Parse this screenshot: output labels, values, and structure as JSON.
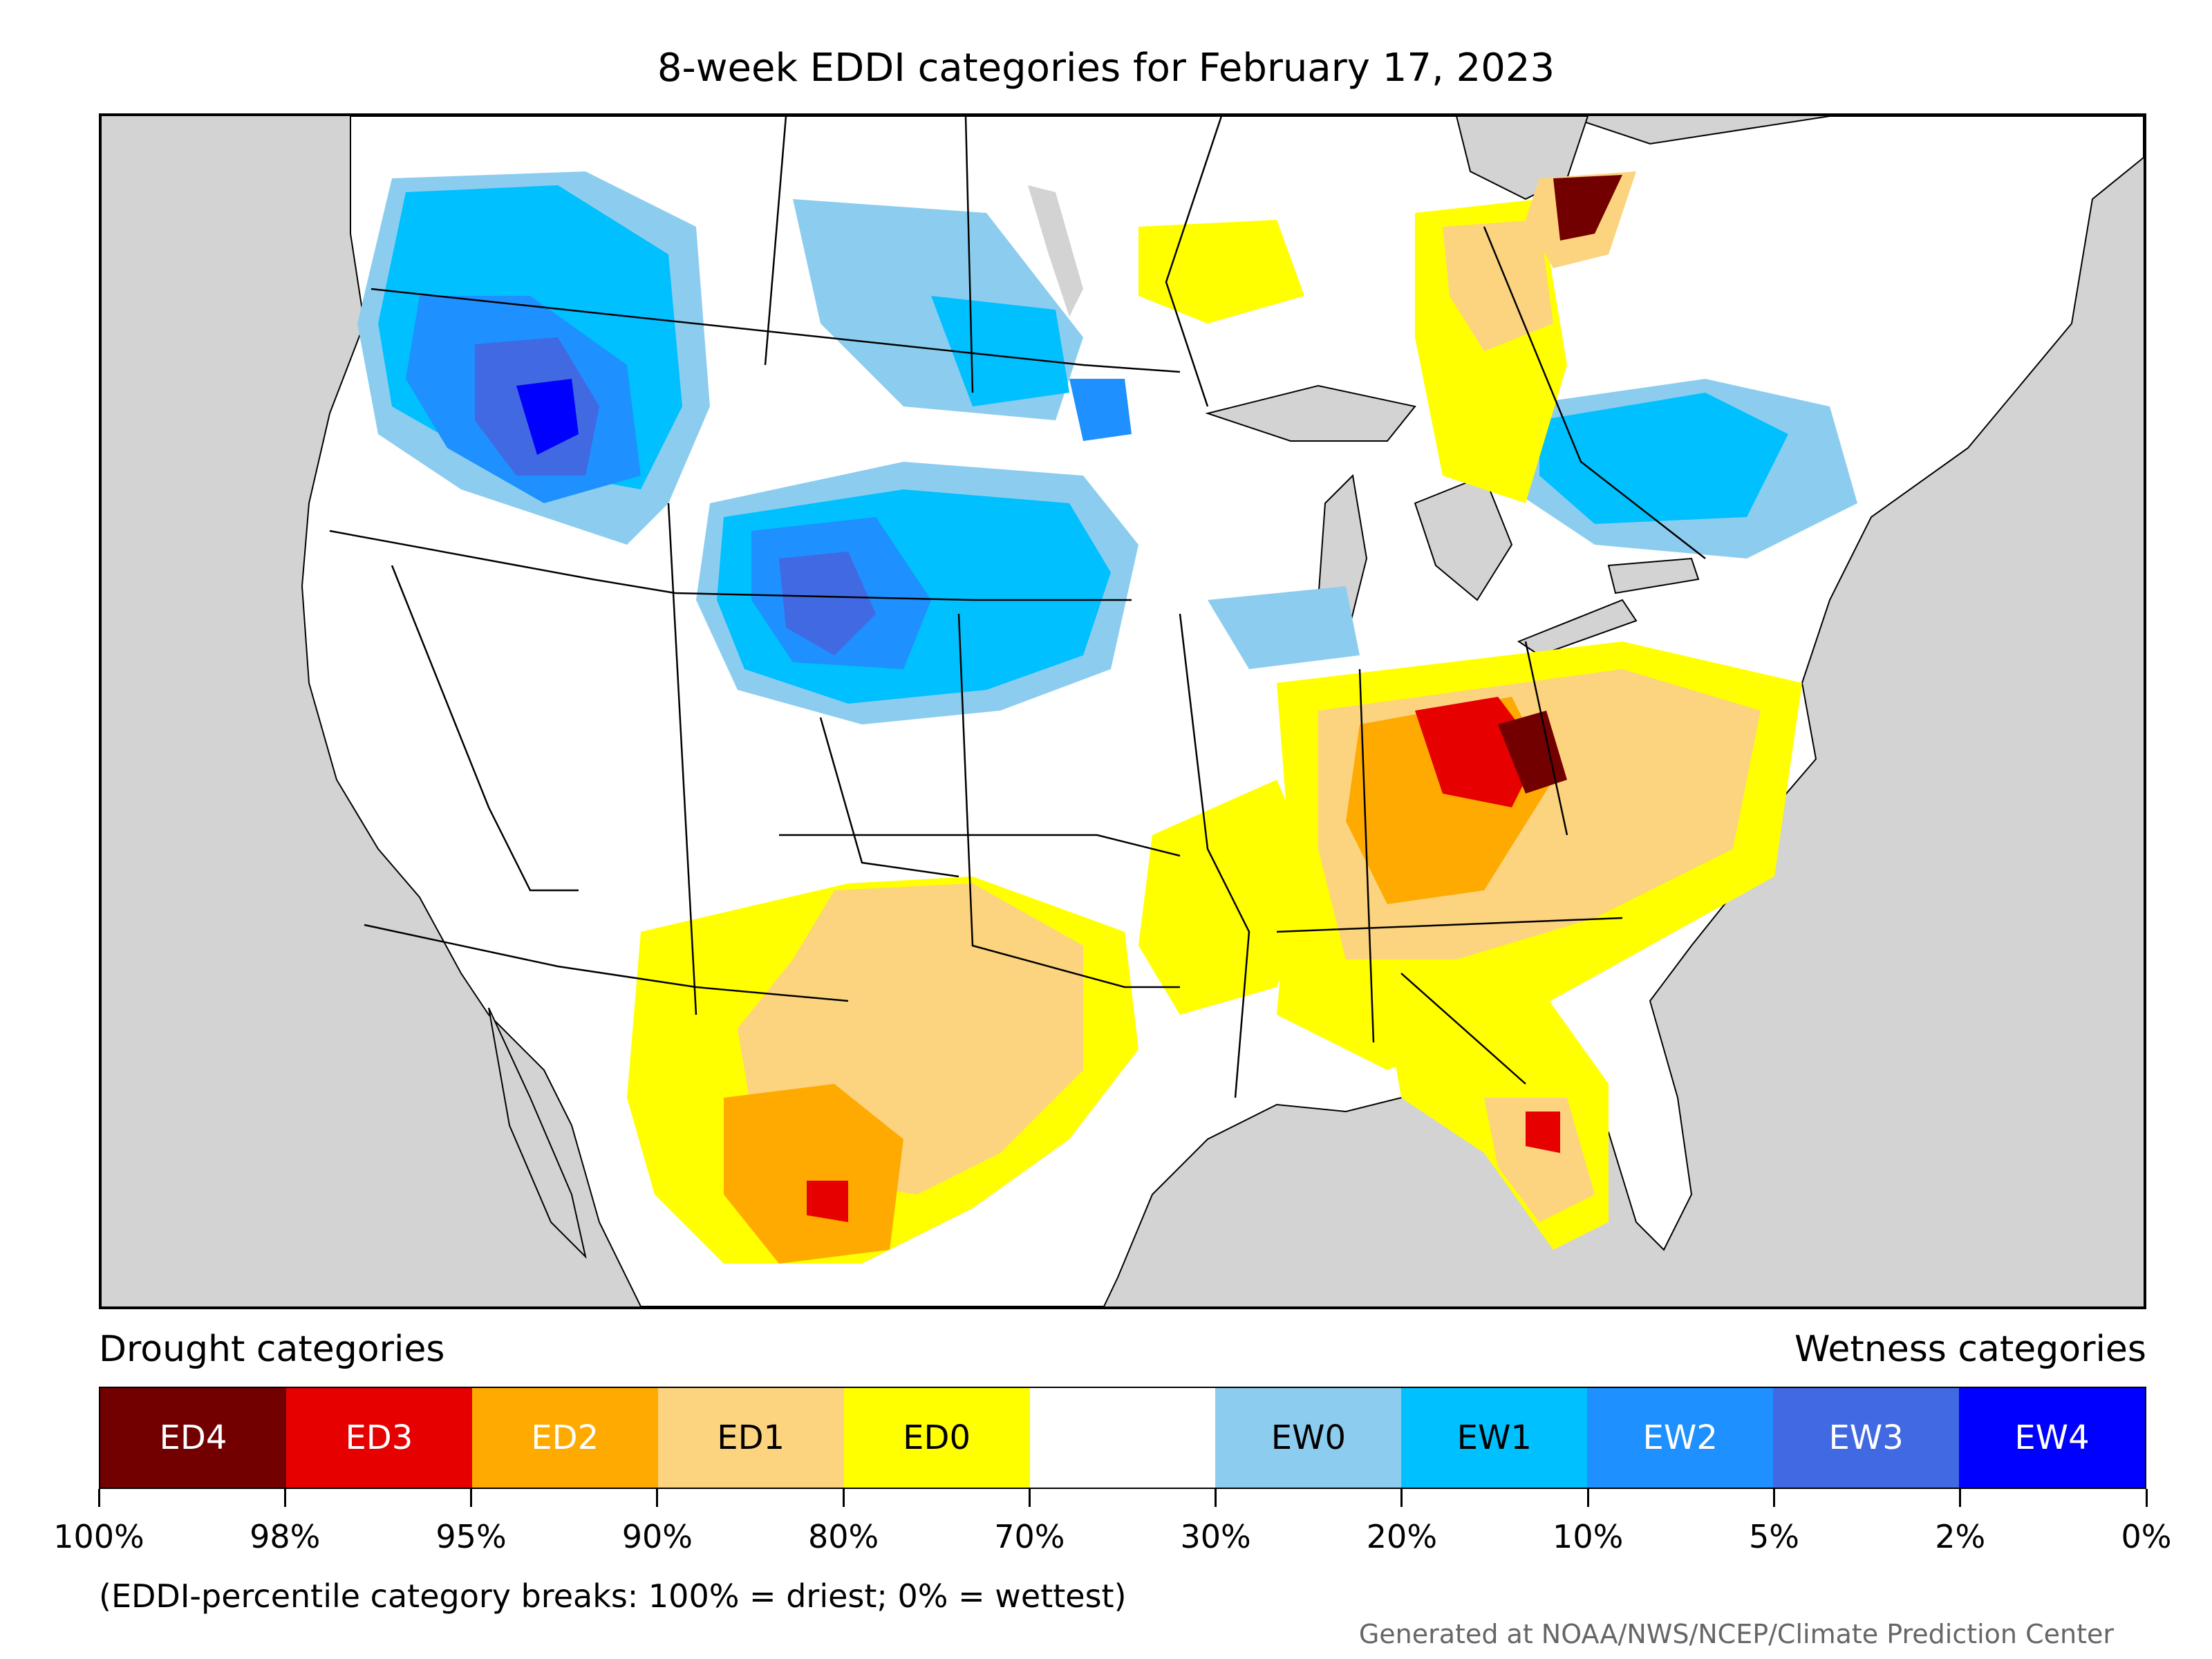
{
  "title": "8-week EDDI categories for February 17, 2023",
  "legend": {
    "drought_heading": "Drought categories",
    "wetness_heading": "Wetness categories",
    "categories": [
      {
        "label": "ED4",
        "color": "#730000",
        "text_color": "#ffffff"
      },
      {
        "label": "ED3",
        "color": "#e60000",
        "text_color": "#ffffff"
      },
      {
        "label": "ED2",
        "color": "#ffaa00",
        "text_color": "#ffffff"
      },
      {
        "label": "ED1",
        "color": "#fcd37f",
        "text_color": "#000000"
      },
      {
        "label": "ED0",
        "color": "#ffff00",
        "text_color": "#000000"
      },
      {
        "label": "",
        "color": "#ffffff",
        "text_color": "#000000"
      },
      {
        "label": "EW0",
        "color": "#8ccdef",
        "text_color": "#000000"
      },
      {
        "label": "EW1",
        "color": "#00c0ff",
        "text_color": "#000000"
      },
      {
        "label": "EW2",
        "color": "#1e90ff",
        "text_color": "#ffffff"
      },
      {
        "label": "EW3",
        "color": "#4169e1",
        "text_color": "#ffffff"
      },
      {
        "label": "EW4",
        "color": "#0000ff",
        "text_color": "#ffffff"
      }
    ],
    "breaks": [
      "100%",
      "98%",
      "95%",
      "90%",
      "80%",
      "70%",
      "30%",
      "20%",
      "10%",
      "5%",
      "2%",
      "0%"
    ]
  },
  "note": "(EDDI-percentile category breaks: 100% = driest; 0% = wettest)",
  "credit": "Generated at NOAA/NWS/NCEP/Climate Prediction Center",
  "map_colors": {
    "ocean": "#d3d3d3",
    "land": "#ffffff",
    "border": "#000000"
  }
}
